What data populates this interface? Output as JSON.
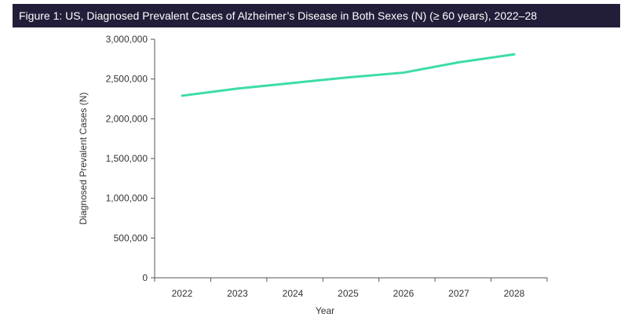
{
  "chart_data": {
    "type": "line",
    "title": "Figure 1: US, Diagnosed Prevalent Cases of Alzheimer’s Disease in Both Sexes (N) (≥ 60 years), 2022–28",
    "xlabel": "Year",
    "ylabel": "Diagnosed Prevalent Cases (N)",
    "categories": [
      "2022",
      "2023",
      "2024",
      "2025",
      "2026",
      "2027",
      "2028"
    ],
    "series": [
      {
        "values": [
          2290000,
          2380000,
          2450000,
          2520000,
          2580000,
          2710000,
          2810000
        ]
      }
    ],
    "ylim": [
      0,
      3000000
    ],
    "yticks": [
      0,
      500000,
      1000000,
      1500000,
      2000000,
      2500000,
      3000000
    ],
    "ytick_labels": [
      "0",
      "500,000",
      "1,000,000",
      "1,500,000",
      "2,000,000",
      "2,500,000",
      "3,000,000"
    ],
    "grid": false,
    "legend": "none",
    "line_color": "#3ddcaa",
    "title_bar_color": "#221e3a"
  }
}
